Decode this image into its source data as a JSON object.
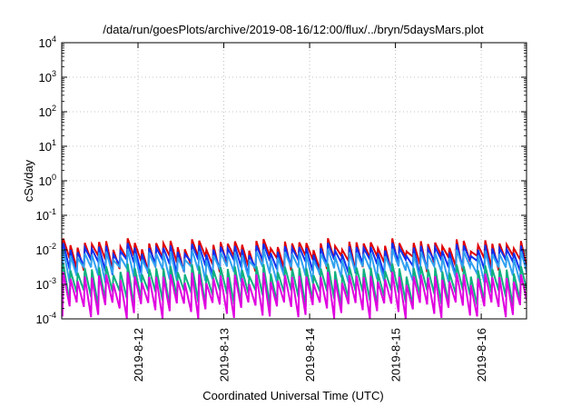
{
  "chart_data": {
    "type": "line",
    "title": "/data/run/goesPlots/archive/2019-08-16/12:00/flux/../bryn/5daysMars.plot",
    "xlabel": "Coordinated Universal Time (UTC)",
    "ylabel": "cSv/day",
    "xlim": [
      "2019-08-11T02:40",
      "2019-08-16T12:40"
    ],
    "x_ticks": [
      "2019-8-12",
      "2019-8-13",
      "2019-8-14",
      "2019-8-15",
      "2019-8-16"
    ],
    "y_scale": "log",
    "ylim": [
      0.0001,
      10000
    ],
    "y_ticks": [
      {
        "base": "10",
        "exp": "-4"
      },
      {
        "base": "10",
        "exp": "-3"
      },
      {
        "base": "10",
        "exp": "-2"
      },
      {
        "base": "10",
        "exp": "-1"
      },
      {
        "base": "10",
        "exp": "0"
      },
      {
        "base": "10",
        "exp": "1"
      },
      {
        "base": "10",
        "exp": "2"
      },
      {
        "base": "10",
        "exp": "3"
      },
      {
        "base": "10",
        "exp": "4"
      }
    ],
    "grid": true,
    "sawtooth_period_hours": 2.0,
    "series": [
      {
        "color": "#e00000",
        "peak": 0.015,
        "trough": 0.0045
      },
      {
        "color": "#1030f0",
        "peak": 0.011,
        "trough": 0.0035
      },
      {
        "color": "#30a0f0",
        "peak": 0.0075,
        "trough": 0.0022
      },
      {
        "color": "#10b080",
        "peak": 0.0028,
        "trough": 0.00045
      },
      {
        "color": "#e000e0",
        "peak": 0.0016,
        "trough": 0.0002
      }
    ]
  }
}
